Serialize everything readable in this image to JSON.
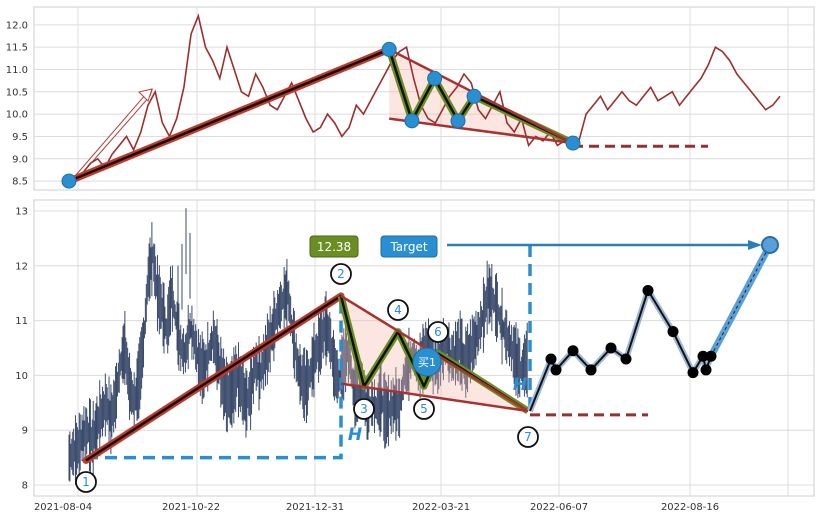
{
  "chart_data": [
    {
      "type": "line",
      "panel": "top",
      "ylim": [
        8.3,
        12.4
      ],
      "yticks": [
        "8.5",
        "9.0",
        "9.5",
        "10.0",
        "10.5",
        "11.0",
        "11.5",
        "12.0"
      ],
      "grid": true,
      "series": [
        {
          "values": [
            8.5,
            8.6,
            8.7,
            8.9,
            9.0,
            8.8,
            9.1,
            9.3,
            9.5,
            9.2,
            9.6,
            10.2,
            10.5,
            9.8,
            9.5,
            9.9,
            10.6,
            11.8,
            12.2,
            11.5,
            11.2,
            10.8,
            11.5,
            11.0,
            10.5,
            10.4,
            10.9,
            10.6,
            10.2,
            10.1,
            10.4,
            10.7,
            10.3,
            9.9,
            9.6,
            9.7,
            10.0,
            9.8,
            9.5,
            9.7,
            10.2,
            10.0,
            10.3,
            10.6,
            10.9,
            11.2,
            11.4,
            11.5,
            10.8,
            10.2,
            9.9,
            9.8,
            10.1,
            10.4,
            10.6,
            10.9,
            10.7,
            10.1,
            9.9,
            10.2,
            10.5,
            9.8,
            9.6,
            9.9,
            9.3,
            9.5,
            9.4,
            9.6,
            9.3,
            9.4,
            9.5,
            9.4,
            10.0,
            10.2,
            10.4,
            10.1,
            10.3,
            10.5,
            10.3,
            10.2,
            10.4,
            10.6,
            10.3,
            10.4,
            10.5,
            10.2,
            10.4,
            10.6,
            10.8,
            11.1,
            11.5,
            11.4,
            11.2,
            10.9,
            10.7,
            10.5,
            10.3,
            10.1,
            10.2,
            10.4
          ]
        }
      ],
      "pattern": [
        {
          "x": 0.0,
          "y": 8.5
        },
        {
          "x": 0.479,
          "y": 11.45
        },
        {
          "x": 0.513,
          "y": 9.85
        },
        {
          "x": 0.547,
          "y": 10.8
        },
        {
          "x": 0.582,
          "y": 9.85
        },
        {
          "x": 0.606,
          "y": 10.4
        },
        {
          "x": 0.754,
          "y": 9.35
        }
      ],
      "lower_edge": {
        "start": {
          "x": 0.479,
          "y": 9.9
        },
        "end": {
          "x": 0.754,
          "y": 9.3
        }
      },
      "support_line_y": 9.28
    },
    {
      "type": "line",
      "panel": "bottom",
      "ylim": [
        7.8,
        13.2
      ],
      "yticks": [
        "8",
        "9",
        "10",
        "11",
        "12",
        "13"
      ],
      "xticks": [
        "2021-08-04",
        "2021-10-22",
        "2021-12-31",
        "2022-03-21",
        "2022-06-07",
        "2022-08-16"
      ],
      "grid": true,
      "point_labels": [
        "1",
        "2",
        "3",
        "4",
        "5",
        "6",
        "7"
      ],
      "point_values": [
        8.45,
        11.45,
        9.8,
        10.8,
        9.8,
        10.4,
        9.35
      ],
      "price_box": "12.38",
      "target_label": "Target",
      "target_value": 12.38,
      "buy_label": "买1",
      "height_label": "H",
      "forecast": [
        9.35,
        10.3,
        10.1,
        10.45,
        10.1,
        10.5,
        10.3,
        11.55,
        10.8,
        10.05,
        10.35,
        10.1,
        10.35,
        12.38
      ]
    }
  ]
}
